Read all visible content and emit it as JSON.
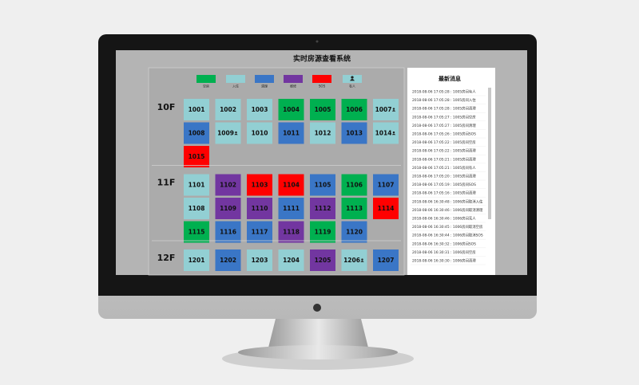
{
  "header": {
    "title": "实时房源查看系统"
  },
  "legend": {
    "items": [
      {
        "label": "空房",
        "color": "#00b050"
      },
      {
        "label": "入住",
        "color": "#92cfd3"
      },
      {
        "label": "清理",
        "color": "#3a76c6"
      },
      {
        "label": "维修",
        "color": "#7236a0"
      },
      {
        "label": "SOS",
        "color": "#ff0000"
      },
      {
        "label": "有人",
        "color": "#92cfd3",
        "occupied": true
      }
    ]
  },
  "floors": [
    {
      "label": "10F",
      "rooms": [
        {
          "number": "1001",
          "color": "#92cfd3"
        },
        {
          "number": "1002",
          "color": "#92cfd3"
        },
        {
          "number": "1003",
          "color": "#92cfd3"
        },
        {
          "number": "1004",
          "color": "#00b050"
        },
        {
          "number": "1005",
          "color": "#00b050"
        },
        {
          "number": "1006",
          "color": "#00b050"
        },
        {
          "number": "1007",
          "color": "#92cfd3",
          "occupied": true
        },
        {
          "number": "1008",
          "color": "#3a76c6"
        },
        {
          "number": "1009",
          "color": "#92cfd3",
          "occupied": true
        },
        {
          "number": "1010",
          "color": "#92cfd3"
        },
        {
          "number": "1011",
          "color": "#3a76c6"
        },
        {
          "number": "1012",
          "color": "#92cfd3"
        },
        {
          "number": "1013",
          "color": "#3a76c6"
        },
        {
          "number": "1014",
          "color": "#92cfd3",
          "occupied": true
        },
        {
          "number": "1015",
          "color": "#ff0000"
        }
      ]
    },
    {
      "label": "11F",
      "rooms": [
        {
          "number": "1101",
          "color": "#92cfd3"
        },
        {
          "number": "1102",
          "color": "#7236a0"
        },
        {
          "number": "1103",
          "color": "#ff0000"
        },
        {
          "number": "1104",
          "color": "#ff0000"
        },
        {
          "number": "1105",
          "color": "#3a76c6"
        },
        {
          "number": "1106",
          "color": "#00b050"
        },
        {
          "number": "1107",
          "color": "#3a76c6"
        },
        {
          "number": "1108",
          "color": "#92cfd3"
        },
        {
          "number": "1109",
          "color": "#7236a0"
        },
        {
          "number": "1110",
          "color": "#7236a0"
        },
        {
          "number": "1111",
          "color": "#3a76c6"
        },
        {
          "number": "1112",
          "color": "#7236a0"
        },
        {
          "number": "1113",
          "color": "#00b050"
        },
        {
          "number": "1114",
          "color": "#ff0000"
        },
        {
          "number": "1115",
          "color": "#00b050"
        },
        {
          "number": "1116",
          "color": "#3a76c6"
        },
        {
          "number": "1117",
          "color": "#3a76c6"
        },
        {
          "number": "1118",
          "color": "#7236a0"
        },
        {
          "number": "1119",
          "color": "#00b050"
        },
        {
          "number": "1120",
          "color": "#3a76c6"
        }
      ]
    },
    {
      "label": "12F",
      "rooms": [
        {
          "number": "1201",
          "color": "#92cfd3"
        },
        {
          "number": "1202",
          "color": "#3a76c6"
        },
        {
          "number": "1203",
          "color": "#92cfd3"
        },
        {
          "number": "1204",
          "color": "#92cfd3"
        },
        {
          "number": "1205",
          "color": "#7236a0"
        },
        {
          "number": "1206",
          "color": "#92cfd3",
          "occupied": true
        },
        {
          "number": "1207",
          "color": "#3a76c6"
        }
      ]
    }
  ],
  "messages": {
    "title": "最新消息",
    "items": [
      "2018-08-06 17:05:28 : 1005房间有人",
      "2018-08-06 17:05:28 : 1005房间入住",
      "2018-08-06 17:05:28 : 1005房间清理",
      "2018-08-06 17:05:27 : 1005房间空房",
      "2018-08-06 17:05:27 : 1005房间清理",
      "2018-08-06 17:05:26 : 1005房间SOS",
      "2018-08-06 17:05:22 : 1005房间空房",
      "2018-08-06 17:05:22 : 1005房间清理",
      "2018-08-06 17:05:21 : 1005房间清理",
      "2018-08-06 17:05:21 : 1005房间有人",
      "2018-08-06 17:05:20 : 1005房间清理",
      "2018-08-06 17:05:19 : 1005房间SOS",
      "2018-08-06 17:05:16 : 1005房间清理",
      "2018-08-06 16:30:48 : 1006房间取消入住",
      "2018-08-06 16:30:46 : 1006房间取消清理",
      "2018-08-06 16:30:46 : 1006房间无人",
      "2018-08-06 16:30:45 : 1006房间取消空房",
      "2018-08-06 16:30:44 : 1006房间取消SOS",
      "2018-08-06 16:30:32 : 1006房间SOS",
      "2018-08-06 16:30:31 : 1006房间空房",
      "2018-08-06 16:30:30 : 1006房间清理"
    ]
  }
}
